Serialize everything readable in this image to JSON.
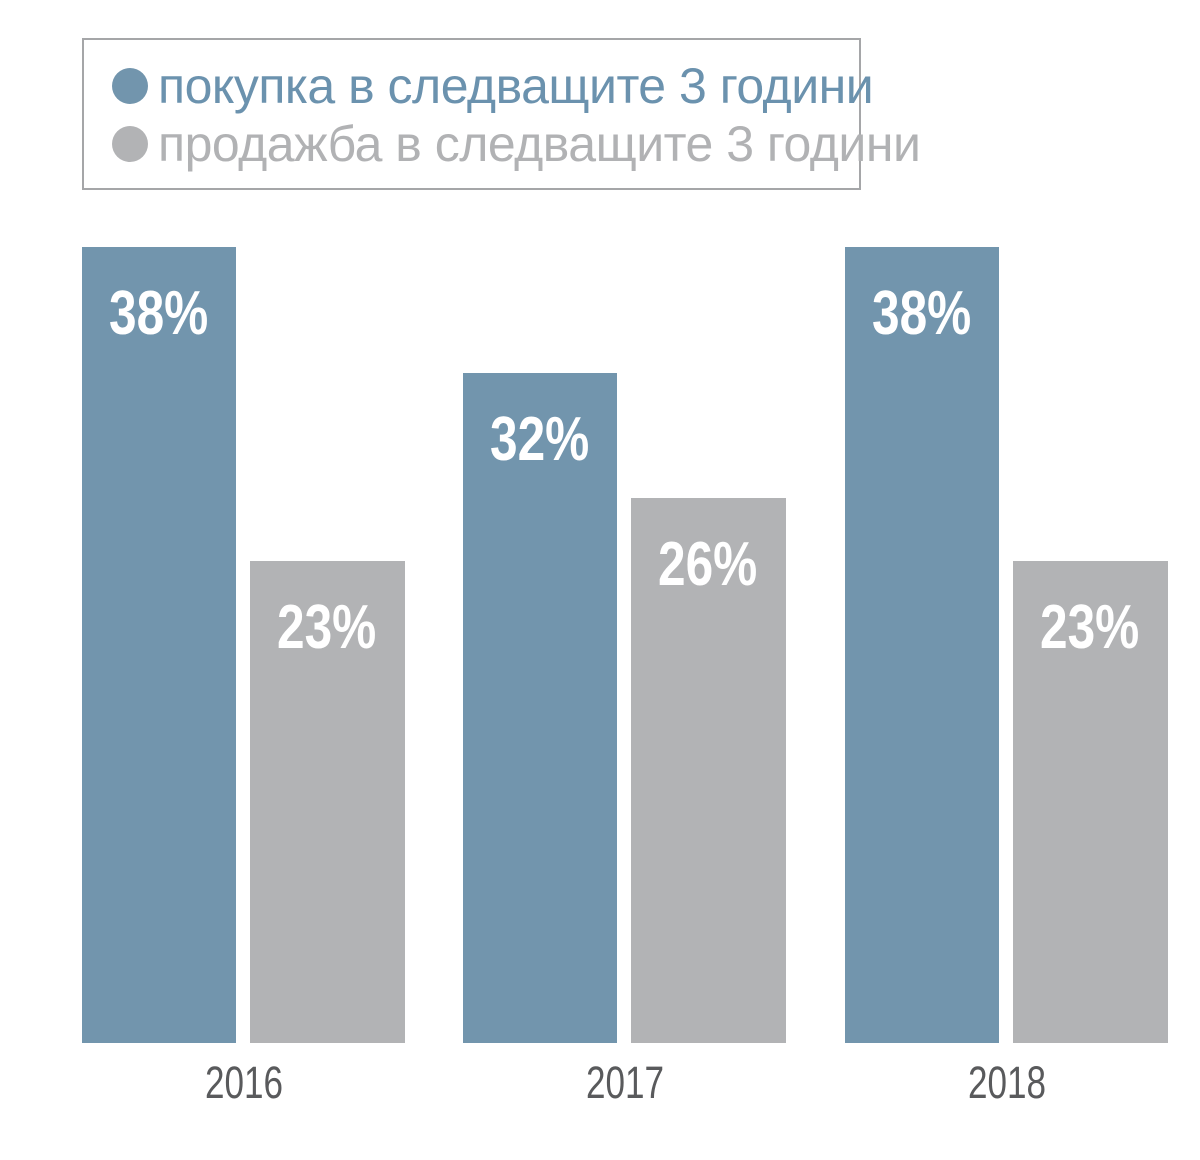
{
  "legend": {
    "items": [
      {
        "label": "покупка в следващите 3 години",
        "dot_color": "#7295ad",
        "text_color": "#6b92ae"
      },
      {
        "label": "продажба в следващите 3 години",
        "dot_color": "#b2b3b5",
        "text_color": "#b1b2b4"
      }
    ]
  },
  "chart_data": {
    "type": "bar",
    "categories": [
      "2016",
      "2017",
      "2018"
    ],
    "series": [
      {
        "name": "покупка в следващите 3 години",
        "key": "buy",
        "values": [
          38,
          32,
          38
        ],
        "color": "#7295ad"
      },
      {
        "name": "продажба в следващите 3 години",
        "key": "sell",
        "values": [
          23,
          26,
          23
        ],
        "color": "#b2b3b5"
      }
    ],
    "value_suffix": "%",
    "data_label_color": "#ffffff",
    "ylim": [
      0,
      40
    ],
    "grid": false,
    "axis_lines": false,
    "legend_position": "top-left",
    "x_label_color": "#595a5c",
    "background": "#ffffff"
  }
}
